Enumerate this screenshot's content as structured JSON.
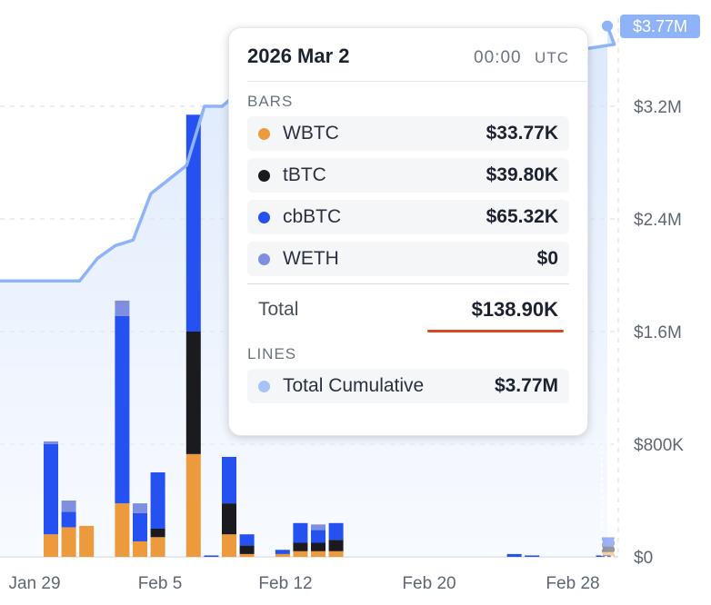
{
  "chart_data": {
    "type": "bar",
    "x_ticks": [
      "Jan 29",
      "Feb 5",
      "Feb 12",
      "Feb 20",
      "Feb 28"
    ],
    "y_ticks": [
      "$0",
      "$800K",
      "$1.6M",
      "$2.4M",
      "$3.2M"
    ],
    "ylim": [
      0,
      3770000
    ],
    "grid": true,
    "series": [
      {
        "name": "WBTC",
        "color": "#ec9a3c",
        "values": [
          160000,
          210000,
          220000,
          0,
          380000,
          110000,
          140000,
          0,
          730000,
          0,
          160000,
          20000,
          0,
          20000,
          40000,
          40000,
          40000,
          0,
          0,
          0,
          0,
          0,
          0,
          0,
          0,
          0,
          0,
          0,
          0,
          0,
          0,
          0,
          33770
        ]
      },
      {
        "name": "tBTC",
        "color": "#1b1b1f",
        "values": [
          0,
          0,
          0,
          0,
          0,
          0,
          60000,
          0,
          870000,
          0,
          220000,
          60000,
          0,
          0,
          60000,
          60000,
          80000,
          0,
          0,
          0,
          0,
          0,
          0,
          0,
          0,
          0,
          0,
          0,
          0,
          0,
          0,
          0,
          39800
        ]
      },
      {
        "name": "cbBTC",
        "color": "#2451f0",
        "values": [
          640000,
          110000,
          0,
          0,
          1330000,
          200000,
          400000,
          0,
          1540000,
          10000,
          330000,
          80000,
          0,
          30000,
          140000,
          90000,
          120000,
          0,
          0,
          0,
          0,
          0,
          0,
          0,
          0,
          0,
          20000,
          10000,
          0,
          0,
          0,
          10000,
          65320
        ]
      },
      {
        "name": "WETH",
        "color": "#7e8fe0",
        "values": [
          20000,
          80000,
          0,
          0,
          110000,
          70000,
          0,
          0,
          0,
          0,
          0,
          0,
          0,
          0,
          0,
          40000,
          0,
          0,
          0,
          0,
          0,
          0,
          0,
          0,
          0,
          0,
          0,
          0,
          0,
          0,
          0,
          0,
          0
        ]
      },
      {
        "name": "Total Cumulative",
        "type": "line",
        "color": "#8fb3f7",
        "values": [
          1960000,
          1960000,
          2120000,
          2210000,
          2250000,
          2580000,
          2680000,
          2780000,
          3200000,
          3200000,
          3310000,
          3330000,
          3360000,
          3380000,
          3400000,
          3430000,
          3460000,
          3470000,
          3480000,
          3490000,
          3500000,
          3510000,
          3520000,
          3530000,
          3540000,
          3550000,
          3560000,
          3570000,
          3580000,
          3600000,
          3620000,
          3640000,
          3770000
        ]
      }
    ],
    "last_value_badge": "$3.77M"
  },
  "tooltip": {
    "date": "2026 Mar 2",
    "time": "00:00",
    "timezone": "UTC",
    "bars_header": "BARS",
    "bars": [
      {
        "name": "WBTC",
        "value": "$33.77K",
        "color": "#ec9a3c"
      },
      {
        "name": "tBTC",
        "value": "$39.80K",
        "color": "#1b1b1f"
      },
      {
        "name": "cbBTC",
        "value": "$65.32K",
        "color": "#2451f0"
      },
      {
        "name": "WETH",
        "value": "$0",
        "color": "#7e8fe0"
      }
    ],
    "total_label": "Total",
    "total_value": "$138.90K",
    "lines_header": "LINES",
    "lines": [
      {
        "name": "Total Cumulative",
        "value": "$3.77M",
        "color": "#a7c2f7"
      }
    ]
  }
}
